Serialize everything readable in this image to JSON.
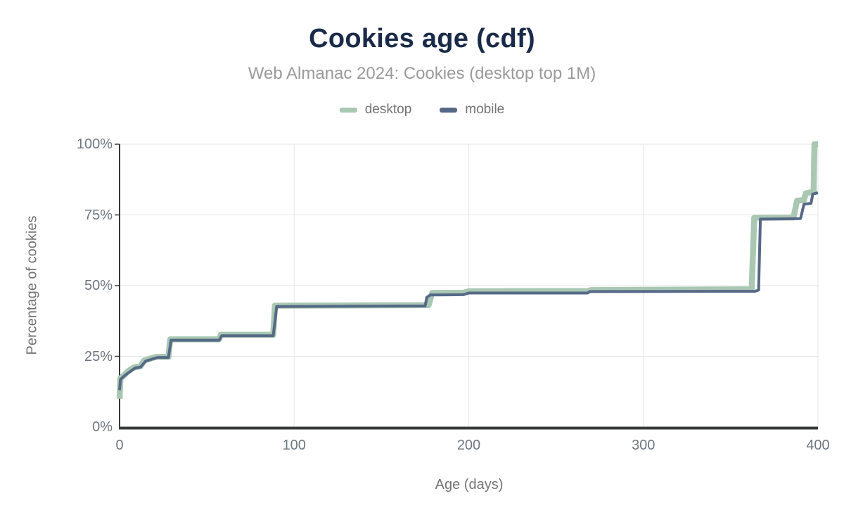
{
  "title": "Cookies age (cdf)",
  "subtitle": "Web Almanac 2024: Cookies (desktop top 1M)",
  "legend": {
    "items": [
      {
        "label": "desktop",
        "color": "#a9c7b2"
      },
      {
        "label": "mobile",
        "color": "#556987"
      }
    ]
  },
  "colors": {
    "title_text": "#1a2b49",
    "subtitle_text": "#9a9a9a",
    "axis_text": "#6e7680",
    "gridline": "#e6e6e6",
    "axis_line": "#37383a",
    "background": "#ffffff"
  },
  "chart_data": {
    "type": "line",
    "subtype": "cdf-step",
    "title": "Cookies age (cdf)",
    "subtitle": "Web Almanac 2024: Cookies (desktop top 1M)",
    "xlabel": "Age (days)",
    "ylabel": "Percentage of cookies",
    "xlim": [
      0,
      400
    ],
    "ylim": [
      0,
      100
    ],
    "grid": true,
    "legend_position": "top",
    "x_ticks": [
      {
        "label": "0",
        "value": 0
      },
      {
        "label": "100",
        "value": 100
      },
      {
        "label": "200",
        "value": 200
      },
      {
        "label": "300",
        "value": 300
      },
      {
        "label": "400",
        "value": 400
      }
    ],
    "y_ticks": [
      {
        "label": "0%",
        "value": 0
      },
      {
        "label": "25%",
        "value": 25
      },
      {
        "label": "50%",
        "value": 50
      },
      {
        "label": "75%",
        "value": 75
      },
      {
        "label": "100%",
        "value": 100
      }
    ],
    "series": [
      {
        "name": "desktop",
        "color": "#a9c7b2",
        "stroke_width": 8.5,
        "points": [
          [
            0,
            10
          ],
          [
            0.5,
            17.2
          ],
          [
            3,
            18.5
          ],
          [
            5,
            19.8
          ],
          [
            8,
            21
          ],
          [
            12,
            21.5
          ],
          [
            14,
            23.5
          ],
          [
            18,
            24.3
          ],
          [
            21,
            24.8
          ],
          [
            28,
            24.8
          ],
          [
            29,
            31
          ],
          [
            57,
            31
          ],
          [
            58,
            32.6
          ],
          [
            88,
            32.6
          ],
          [
            89,
            42.9
          ],
          [
            177,
            43.1
          ],
          [
            179,
            47.4
          ],
          [
            197,
            47.5
          ],
          [
            200,
            48
          ],
          [
            268,
            48.1
          ],
          [
            270,
            48.4
          ],
          [
            362,
            48.7
          ],
          [
            363.5,
            74
          ],
          [
            386,
            74.1
          ],
          [
            388,
            80
          ],
          [
            392,
            80.3
          ],
          [
            393,
            82.6
          ],
          [
            397.5,
            83.2
          ],
          [
            398,
            100
          ],
          [
            400,
            100
          ]
        ]
      },
      {
        "name": "mobile",
        "color": "#556987",
        "stroke_width": 4,
        "points": [
          [
            0,
            13
          ],
          [
            0.5,
            16.8
          ],
          [
            3,
            18.2
          ],
          [
            6,
            19.6
          ],
          [
            9,
            20.9
          ],
          [
            12,
            21.2
          ],
          [
            15,
            23.3
          ],
          [
            19,
            24.1
          ],
          [
            22,
            24.6
          ],
          [
            28,
            24.6
          ],
          [
            29.5,
            30.7
          ],
          [
            57,
            30.7
          ],
          [
            58.5,
            32.3
          ],
          [
            88,
            32.3
          ],
          [
            90,
            42.6
          ],
          [
            175,
            42.8
          ],
          [
            176,
            45.9
          ],
          [
            178,
            46.7
          ],
          [
            197,
            46.8
          ],
          [
            200,
            47.4
          ],
          [
            268,
            47.4
          ],
          [
            269.5,
            47.9
          ],
          [
            364,
            48
          ],
          [
            366,
            48.4
          ],
          [
            367,
            73.5
          ],
          [
            390,
            73.7
          ],
          [
            392,
            78.8
          ],
          [
            396,
            79.1
          ],
          [
            397,
            82.4
          ],
          [
            400,
            82.8
          ]
        ]
      }
    ]
  }
}
